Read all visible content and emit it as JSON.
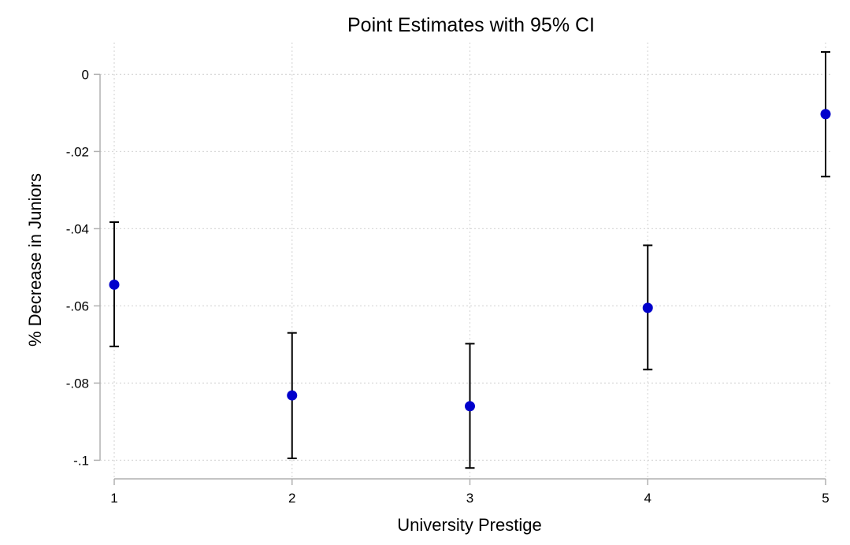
{
  "chart_data": {
    "type": "scatter",
    "title": "Point Estimates with 95% CI",
    "xlabel": "University Prestige",
    "ylabel": "% Decrease in Juniors",
    "x": [
      1,
      2,
      3,
      4,
      5
    ],
    "x_tick_labels": [
      "1",
      "2",
      "3",
      "4",
      "5"
    ],
    "y_ticks": [
      0,
      -0.02,
      -0.04,
      -0.06,
      -0.08,
      -0.1
    ],
    "y_tick_labels": [
      "0",
      "-.02",
      "-.04",
      "-.06",
      "-.08",
      "-.1"
    ],
    "xlim": [
      1,
      5
    ],
    "ylim": [
      -0.104,
      0.0062
    ],
    "grid": true,
    "series": [
      {
        "values": [
          -0.0545,
          -0.0832,
          -0.086,
          -0.0605,
          -0.0103
        ],
        "ci_lower": [
          -0.0705,
          -0.0995,
          -0.102,
          -0.0765,
          -0.0265
        ],
        "ci_upper": [
          -0.0383,
          -0.067,
          -0.0698,
          -0.0443,
          0.0058
        ],
        "color": "#0000cc"
      }
    ],
    "colors": {
      "point": "#0000cc",
      "ci": "#000000",
      "grid": "#d9d9d9",
      "axis": "#b0b0b0"
    }
  }
}
